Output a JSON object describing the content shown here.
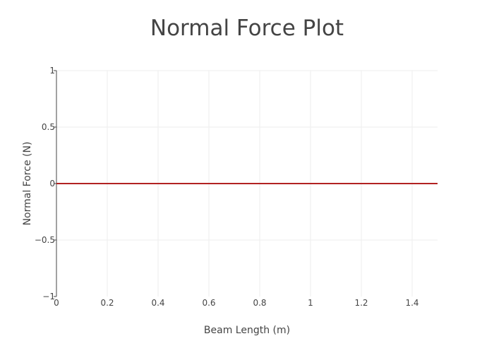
{
  "chart_data": {
    "type": "line",
    "title": "Normal Force Plot",
    "xlabel": "Beam Length (m)",
    "ylabel": "Normal Force (N)",
    "xlim": [
      0,
      1.5
    ],
    "ylim": [
      -1,
      1
    ],
    "x_ticks": [
      0,
      0.2,
      0.4,
      0.6,
      0.8,
      1,
      1.2,
      1.4
    ],
    "x_tick_labels": [
      "0",
      "0.2",
      "0.4",
      "0.6",
      "0.8",
      "1",
      "1.2",
      "1.4"
    ],
    "y_ticks": [
      -1,
      -0.5,
      0,
      0.5,
      1
    ],
    "y_tick_labels": [
      "−1",
      "−0.5",
      "0",
      "0.5",
      "1"
    ],
    "grid": true,
    "series": [
      {
        "color": "#b22222",
        "x": [
          0,
          1.5
        ],
        "y": [
          0,
          0
        ]
      }
    ]
  }
}
